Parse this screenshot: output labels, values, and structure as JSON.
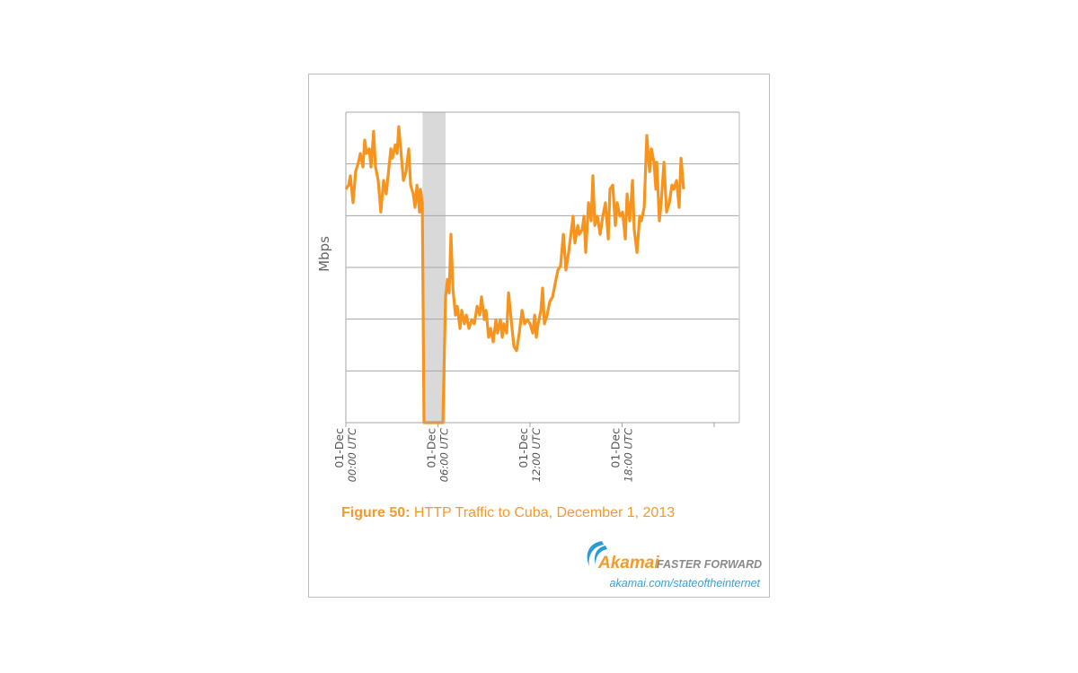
{
  "chart_data": {
    "type": "line",
    "title": "",
    "ylabel": "Mbps",
    "xlabel": "",
    "xlim_hours_utc": [
      0,
      25.64
    ],
    "ylim": [
      0,
      6
    ],
    "y_tick_labels_shown": false,
    "grid": "horizontal",
    "legend": "none",
    "x_ticks": [
      {
        "hour": 0,
        "date": "01-Dec",
        "time": "00:00 UTC"
      },
      {
        "hour": 6,
        "date": "01-Dec",
        "time": "06:00 UTC"
      },
      {
        "hour": 12,
        "date": "01-Dec",
        "time": "12:00 UTC"
      },
      {
        "hour": 18,
        "date": "01-Dec",
        "time": "18:00 UTC"
      },
      {
        "hour": 24,
        "date": "",
        "time": ""
      }
    ],
    "shaded_region_hours": [
      5.0,
      6.5
    ],
    "colors": {
      "line": "#f7941d",
      "shade": "#d9d9d9",
      "grid": "#a6a6a6"
    },
    "series": [
      {
        "x": [
          0,
          0.18,
          0.29,
          0.47,
          0.64,
          0.82,
          0.94,
          1.11,
          1.23,
          1.35,
          1.52,
          1.64,
          1.81,
          1.93,
          2.11,
          2.28,
          2.46,
          2.63,
          2.75,
          2.93,
          3.04,
          3.22,
          3.34,
          3.45,
          3.63,
          3.75,
          3.92,
          4.1,
          4.22,
          4.39,
          4.51,
          4.63,
          4.8,
          4.86,
          4.98,
          5.09,
          6.32,
          6.5,
          6.62,
          6.73,
          6.85,
          6.97,
          7.14,
          7.26,
          7.44,
          7.55,
          7.73,
          7.85,
          8.02,
          8.2,
          8.37,
          8.55,
          8.72,
          8.84,
          9.02,
          9.13,
          9.31,
          9.43,
          9.6,
          9.78,
          9.89,
          10.07,
          10.19,
          10.3,
          10.48,
          10.6,
          10.77,
          10.95,
          11.12,
          11.3,
          11.48,
          11.65,
          11.83,
          12,
          12.18,
          12.3,
          12.41,
          12.53,
          12.71,
          12.82,
          12.94,
          13.11,
          13.29,
          13.47,
          13.64,
          13.82,
          13.99,
          14.17,
          14.34,
          14.52,
          14.7,
          14.81,
          14.93,
          15.11,
          15.22,
          15.4,
          15.52,
          15.63,
          15.81,
          15.98,
          16.1,
          16.22,
          16.39,
          16.57,
          16.74,
          16.92,
          17.1,
          17.21,
          17.39,
          17.56,
          17.68,
          17.86,
          18.03,
          18.21,
          18.33,
          18.5,
          18.68,
          18.79,
          18.97,
          19.15,
          19.26,
          19.44,
          19.61,
          19.79,
          19.91,
          20.08,
          20.2,
          20.26,
          20.43,
          20.55,
          20.73,
          20.9,
          21.08,
          21.25,
          21.37,
          21.55,
          21.72,
          21.84,
          22.01
        ],
        "y": [
          4.51,
          4.59,
          4.77,
          4.25,
          4.85,
          5.03,
          5.2,
          4.94,
          5.46,
          5.2,
          5.29,
          4.94,
          5.63,
          4.94,
          4.68,
          4.07,
          4.68,
          4.42,
          4.77,
          5.29,
          5.11,
          5.37,
          5.2,
          5.72,
          5.11,
          4.68,
          4.85,
          5.29,
          4.59,
          4.42,
          4.16,
          4.59,
          4.07,
          4.51,
          4.25,
          0,
          0,
          2.43,
          2.77,
          2.51,
          3.64,
          2.6,
          2.08,
          2.25,
          1.82,
          2.17,
          1.91,
          2.08,
          1.82,
          1.99,
          1.91,
          2.25,
          2.08,
          2.43,
          1.99,
          2.17,
          1.65,
          1.82,
          1.56,
          1.99,
          1.73,
          1.99,
          1.65,
          1.91,
          1.73,
          2.51,
          1.99,
          1.47,
          1.39,
          1.73,
          2.17,
          1.91,
          1.99,
          1.91,
          1.73,
          2.08,
          1.65,
          1.91,
          2.17,
          2.6,
          1.91,
          2.08,
          2.34,
          2.43,
          2.69,
          2.95,
          3.03,
          3.64,
          2.95,
          3.29,
          3.73,
          3.99,
          3.47,
          3.81,
          3.64,
          3.73,
          3.99,
          3.29,
          4.25,
          3.9,
          4.77,
          3.81,
          3.99,
          3.64,
          3.99,
          4.25,
          3.55,
          4.51,
          4.59,
          3.81,
          4.25,
          3.99,
          4.07,
          3.55,
          4.42,
          3.9,
          4.68,
          3.73,
          3.29,
          3.99,
          3.9,
          4.16,
          5.55,
          4.85,
          5.29,
          5.03,
          4.51,
          5.03,
          3.9,
          4.25,
          5.03,
          4.07,
          4.25,
          4.59,
          4.51,
          4.68,
          4.16,
          5.11,
          4.51
        ]
      }
    ]
  },
  "figure": {
    "caption_label": "Figure 50:",
    "caption_text": " HTTP Traffic to Cuba, December 1, 2013"
  },
  "branding": {
    "logo_text": "Akamai",
    "tagline": "FASTER FORWARD",
    "url": "akamai.com/stateoftheinternet",
    "colors": {
      "orange": "#f39a2c",
      "blue": "#2a9bd7",
      "gray": "#8a8a8a"
    }
  }
}
